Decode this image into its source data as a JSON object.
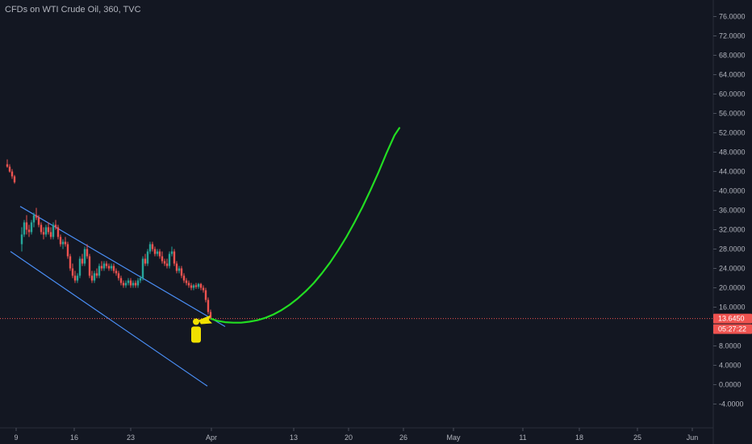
{
  "header": {
    "title": "CFDs on WTI Crude Oil, 360, TVC"
  },
  "chart_data": {
    "type": "candlestick",
    "title": "CFDs on WTI Crude Oil, 360, TVC",
    "x_ticks": [
      "9",
      "16",
      "23",
      "Apr",
      "13",
      "20",
      "26",
      "May",
      "11",
      "18",
      "25",
      "Jun"
    ],
    "y_ticks": [
      "76.0000",
      "72.0000",
      "68.0000",
      "64.0000",
      "60.0000",
      "56.0000",
      "52.0000",
      "48.0000",
      "44.0000",
      "40.0000",
      "36.0000",
      "32.0000",
      "28.0000",
      "24.0000",
      "20.0000",
      "16.0000",
      "8.0000",
      "4.0000",
      "0.0000",
      "-4.0000"
    ],
    "ylim": [
      -5.5,
      79
    ],
    "last_price": "13.6450",
    "countdown": "05:27:22",
    "colors": {
      "up": "#26a69a",
      "down": "#ef5350",
      "channel": "#4a8ef5",
      "projection": "#22dd22",
      "marker": "#f0e000",
      "price_line": "#ef5350"
    },
    "candles": [
      [
        0.0,
        45.5,
        46.5,
        44.8,
        45.0
      ],
      [
        0.3,
        45.0,
        45.5,
        43.8,
        44.0
      ],
      [
        0.6,
        44.0,
        44.5,
        42.5,
        43.0
      ],
      [
        0.9,
        43.0,
        43.3,
        41.5,
        41.8
      ],
      [
        1.8,
        29.0,
        32.5,
        27.5,
        31.0
      ],
      [
        2.1,
        31.0,
        34.0,
        30.5,
        33.5
      ],
      [
        2.4,
        33.5,
        35.0,
        31.0,
        32.0
      ],
      [
        2.7,
        32.0,
        33.0,
        30.5,
        31.5
      ],
      [
        3.0,
        31.5,
        34.0,
        31.0,
        33.5
      ],
      [
        3.3,
        33.5,
        35.5,
        32.5,
        35.0
      ],
      [
        3.6,
        35.0,
        36.5,
        34.0,
        34.5
      ],
      [
        3.9,
        34.5,
        35.0,
        32.5,
        33.0
      ],
      [
        4.2,
        33.0,
        33.5,
        31.0,
        31.5
      ],
      [
        4.5,
        31.5,
        32.5,
        30.0,
        31.0
      ],
      [
        4.8,
        31.0,
        33.0,
        30.5,
        32.5
      ],
      [
        5.1,
        32.5,
        33.5,
        31.0,
        31.5
      ],
      [
        5.4,
        31.5,
        32.5,
        30.0,
        30.5
      ],
      [
        5.7,
        30.5,
        33.5,
        30.0,
        33.0
      ],
      [
        6.0,
        33.0,
        34.0,
        32.0,
        32.5
      ],
      [
        6.3,
        32.5,
        33.0,
        30.0,
        30.5
      ],
      [
        6.6,
        30.5,
        31.0,
        28.5,
        29.0
      ],
      [
        6.9,
        29.0,
        30.0,
        28.0,
        29.5
      ],
      [
        7.2,
        29.5,
        30.5,
        28.5,
        29.0
      ],
      [
        7.5,
        29.0,
        29.5,
        26.0,
        26.5
      ],
      [
        7.8,
        26.5,
        27.0,
        23.5,
        24.0
      ],
      [
        8.1,
        24.0,
        25.0,
        22.0,
        22.5
      ],
      [
        8.4,
        22.5,
        23.5,
        21.0,
        21.5
      ],
      [
        8.7,
        21.5,
        23.0,
        21.0,
        22.5
      ],
      [
        9.0,
        22.5,
        26.5,
        22.0,
        26.0
      ],
      [
        9.3,
        26.0,
        27.0,
        24.5,
        25.0
      ],
      [
        9.6,
        25.0,
        28.5,
        24.5,
        28.0
      ],
      [
        9.9,
        28.0,
        29.0,
        26.0,
        26.5
      ],
      [
        10.2,
        26.5,
        27.0,
        22.0,
        22.5
      ],
      [
        10.5,
        22.5,
        23.5,
        21.0,
        21.5
      ],
      [
        10.8,
        21.5,
        23.5,
        21.0,
        23.0
      ],
      [
        11.1,
        23.0,
        24.0,
        22.0,
        22.5
      ],
      [
        11.4,
        22.5,
        25.0,
        22.0,
        24.5
      ],
      [
        11.7,
        24.5,
        25.5,
        23.5,
        24.0
      ],
      [
        12.0,
        24.0,
        25.5,
        23.5,
        25.0
      ],
      [
        12.3,
        25.0,
        25.5,
        24.0,
        24.5
      ],
      [
        12.6,
        24.5,
        25.0,
        23.5,
        24.0
      ],
      [
        12.9,
        24.0,
        25.0,
        23.5,
        24.5
      ],
      [
        13.2,
        24.5,
        25.0,
        23.0,
        23.5
      ],
      [
        13.5,
        23.5,
        24.0,
        22.5,
        23.0
      ],
      [
        13.8,
        23.0,
        23.5,
        21.5,
        22.0
      ],
      [
        14.1,
        22.0,
        22.5,
        20.5,
        21.0
      ],
      [
        14.4,
        21.0,
        21.5,
        20.0,
        20.5
      ],
      [
        14.7,
        20.5,
        21.5,
        20.0,
        21.0
      ],
      [
        15.0,
        21.0,
        22.0,
        20.5,
        21.5
      ],
      [
        15.3,
        21.5,
        22.0,
        20.0,
        20.5
      ],
      [
        15.6,
        20.5,
        21.5,
        20.0,
        21.0
      ],
      [
        15.9,
        21.0,
        21.5,
        20.0,
        20.5
      ],
      [
        16.2,
        20.5,
        22.0,
        20.0,
        21.5
      ],
      [
        16.5,
        21.5,
        22.5,
        21.0,
        22.0
      ],
      [
        16.8,
        22.0,
        26.5,
        21.5,
        26.0
      ],
      [
        17.1,
        26.0,
        27.0,
        24.5,
        25.0
      ],
      [
        17.4,
        25.0,
        28.0,
        24.5,
        27.5
      ],
      [
        17.7,
        27.5,
        29.5,
        27.0,
        29.0
      ],
      [
        18.0,
        29.0,
        29.5,
        27.5,
        28.0
      ],
      [
        18.3,
        28.0,
        28.5,
        26.5,
        27.0
      ],
      [
        18.6,
        27.0,
        28.0,
        26.5,
        27.5
      ],
      [
        18.9,
        27.5,
        28.0,
        26.0,
        26.5
      ],
      [
        19.2,
        26.5,
        27.5,
        25.0,
        25.5
      ],
      [
        19.5,
        25.5,
        26.0,
        24.5,
        25.0
      ],
      [
        19.8,
        25.0,
        26.0,
        24.0,
        24.5
      ],
      [
        20.1,
        24.5,
        27.5,
        24.0,
        27.0
      ],
      [
        20.4,
        27.0,
        28.5,
        26.5,
        27.5
      ],
      [
        20.7,
        27.5,
        28.0,
        24.5,
        25.0
      ],
      [
        21.0,
        25.0,
        25.5,
        23.0,
        23.5
      ],
      [
        21.3,
        23.5,
        24.5,
        23.0,
        24.0
      ],
      [
        21.6,
        24.0,
        24.5,
        22.0,
        22.5
      ],
      [
        21.9,
        22.5,
        23.0,
        21.0,
        21.5
      ],
      [
        22.2,
        21.5,
        22.0,
        20.5,
        21.0
      ],
      [
        22.5,
        21.0,
        21.5,
        20.0,
        20.5
      ],
      [
        22.8,
        20.5,
        21.0,
        19.5,
        20.0
      ],
      [
        23.1,
        20.0,
        20.8,
        19.5,
        20.5
      ],
      [
        23.4,
        20.5,
        21.0,
        19.8,
        20.2
      ],
      [
        23.7,
        20.2,
        21.0,
        19.8,
        20.8
      ],
      [
        24.0,
        20.8,
        21.0,
        19.5,
        20.0
      ],
      [
        24.3,
        20.0,
        20.5,
        19.0,
        19.5
      ],
      [
        24.6,
        19.5,
        20.0,
        17.0,
        17.5
      ],
      [
        24.9,
        17.5,
        18.0,
        14.5,
        15.0
      ],
      [
        25.2,
        15.0,
        15.5,
        13.4,
        13.7
      ]
    ],
    "channel_lines": [
      {
        "x": [
          1.6,
          27.0
        ],
        "y": [
          36.8,
          12.0
        ]
      },
      {
        "x": [
          0.4,
          24.8
        ],
        "y": [
          27.5,
          -0.3
        ]
      }
    ],
    "projection": {
      "x": [
        25.3,
        26.0,
        27.0,
        28.0,
        29.0,
        30.0,
        31.0,
        32.0,
        33.0,
        34.0,
        35.0,
        36.0,
        37.0,
        38.0,
        39.0,
        40.0,
        41.0,
        42.0,
        43.0,
        44.0,
        45.0,
        46.0,
        47.0,
        48.0,
        48.6
      ],
      "y": [
        13.6,
        13.2,
        12.9,
        12.8,
        12.8,
        13.0,
        13.3,
        13.8,
        14.5,
        15.4,
        16.5,
        17.8,
        19.3,
        21.0,
        23.0,
        25.2,
        27.7,
        30.4,
        33.4,
        36.6,
        40.1,
        43.8,
        47.8,
        51.5,
        53.0
      ]
    },
    "marker": {
      "x": 23.4,
      "y": 13.0
    }
  }
}
